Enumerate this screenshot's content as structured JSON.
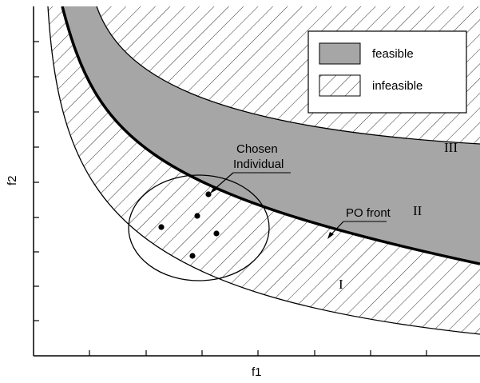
{
  "axes": {
    "x_label": "f1",
    "y_label": "f2"
  },
  "legend": {
    "feasible": "feasible",
    "infeasible": "infeasible"
  },
  "annotations": {
    "chosen_line1": "Chosen",
    "chosen_line2": "Individual",
    "po_front": "PO front",
    "region_1": "I",
    "region_2": "II",
    "region_3": "III"
  },
  "colors": {
    "feasible_fill": "#a6a6a6",
    "hatch": "#333333",
    "line": "#000000"
  }
}
